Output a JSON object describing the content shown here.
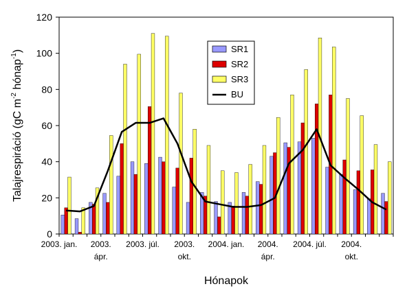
{
  "chart_data": {
    "type": "bar",
    "xlabel": "Hónapok",
    "ylabel_main": "Talajrespiráció (gC m",
    "ylabel_sup1": "-2",
    "ylabel_mid": " hónap",
    "ylabel_sup2": "-1",
    "ylabel_end": ")",
    "ylim": [
      0,
      120
    ],
    "yticks": [
      0,
      20,
      40,
      60,
      80,
      100,
      120
    ],
    "grid": false,
    "legend_position": "top-center",
    "categories": [
      "2003-01",
      "2003-02",
      "2003-03",
      "2003-04",
      "2003-05",
      "2003-06",
      "2003-07",
      "2003-08",
      "2003-09",
      "2003-10",
      "2003-11",
      "2003-12",
      "2004-01",
      "2004-02",
      "2004-03",
      "2004-04",
      "2004-05",
      "2004-06",
      "2004-07",
      "2004-08",
      "2004-09",
      "2004-10",
      "2004-11",
      "2004-12"
    ],
    "x_tick_labels": [
      {
        "lines": [
          "2003. jan."
        ],
        "index": 0
      },
      {
        "lines": [
          "2003.",
          "ápr."
        ],
        "index": 3
      },
      {
        "lines": [
          "2003. júl."
        ],
        "index": 6
      },
      {
        "lines": [
          "2003.",
          "okt."
        ],
        "index": 9
      },
      {
        "lines": [
          "2004. jan."
        ],
        "index": 12
      },
      {
        "lines": [
          "2004.",
          "ápr."
        ],
        "index": 15
      },
      {
        "lines": [
          "2004. júl."
        ],
        "index": 18
      },
      {
        "lines": [
          "2004.",
          "okt."
        ],
        "index": 21
      }
    ],
    "series": [
      {
        "name": "SR1",
        "kind": "bar",
        "color": "#9999ff",
        "values": [
          10.5,
          8.5,
          17.5,
          22.5,
          32,
          40,
          39,
          42.5,
          26,
          17.5,
          23,
          18,
          17.5,
          23,
          29,
          43,
          50.5,
          51,
          53,
          37,
          33,
          24.5,
          19.5,
          22.5
        ]
      },
      {
        "name": "SR2",
        "kind": "bar",
        "color": "#dd0000",
        "values": [
          14.5,
          1,
          16.5,
          17.5,
          50,
          33,
          70.5,
          40,
          36.5,
          42,
          21,
          9.5,
          15.5,
          21,
          27.5,
          45,
          48,
          61.5,
          72,
          77,
          41,
          35,
          35.5,
          18
        ]
      },
      {
        "name": "SR3",
        "kind": "bar",
        "color": "#ffff66",
        "values": [
          31.5,
          14.5,
          25.5,
          54.5,
          94,
          99.5,
          111,
          109.5,
          78,
          58,
          49,
          35,
          34,
          38.5,
          49,
          64.5,
          77,
          91,
          108.5,
          103.5,
          75,
          65.5,
          49.5,
          40
        ]
      },
      {
        "name": "BU",
        "kind": "line",
        "color": "#000000",
        "values": [
          13,
          12.5,
          15.5,
          35,
          56.5,
          61.5,
          61.5,
          64,
          50,
          29,
          18,
          16.5,
          15,
          15,
          16,
          20,
          39,
          46.5,
          58,
          38,
          31,
          24.5,
          17.5,
          13.5
        ]
      }
    ]
  }
}
